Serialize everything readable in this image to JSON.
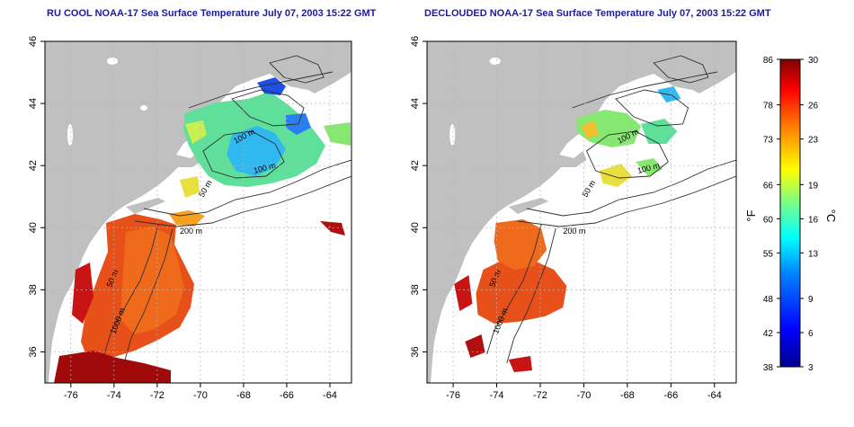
{
  "panels": [
    {
      "title": "RU COOL NOAA-17 Sea Surface Temperature July 07, 2003 15:22 GMT",
      "contours": [
        {
          "label": "100 m"
        },
        {
          "label": "100 m"
        },
        {
          "label": "50 m"
        },
        {
          "label": "200 m"
        },
        {
          "label": "50 m"
        },
        {
          "label": "1000 m"
        }
      ]
    },
    {
      "title": "DECLOUDED NOAA-17 Sea Surface Temperature July 07, 2003 15:22 GMT",
      "contours": [
        {
          "label": "100 m"
        },
        {
          "label": "100 m"
        },
        {
          "label": "50 m"
        },
        {
          "label": "200 m"
        },
        {
          "label": "50 m"
        },
        {
          "label": "1000 m"
        }
      ]
    }
  ],
  "axes": {
    "x_ticks": [
      "-76",
      "-74",
      "-72",
      "-70",
      "-68",
      "-66",
      "-64"
    ],
    "y_ticks": [
      "46",
      "44",
      "42",
      "40",
      "38",
      "36"
    ],
    "lon_range": [
      -77.2,
      -63
    ],
    "lat_range": [
      35,
      46
    ]
  },
  "colorbar": {
    "fahrenheit_label": "°F",
    "celsius_label": "°C",
    "fahrenheit_ticks": [
      "86",
      "78",
      "73",
      "66",
      "60",
      "55",
      "48",
      "42",
      "38"
    ],
    "celsius_ticks": [
      "30",
      "26",
      "23",
      "19",
      "16",
      "13",
      "9",
      "6",
      "3"
    ],
    "range_celsius": [
      3,
      30
    ]
  },
  "colors": {
    "land": "#c0c0c0",
    "ocean": "#ffffff",
    "title": "#1a1aa6",
    "colormap": [
      "#00008f",
      "#0000ff",
      "#0080ff",
      "#00ffff",
      "#80ff80",
      "#ffff00",
      "#ff8000",
      "#ff0000",
      "#800000"
    ]
  }
}
